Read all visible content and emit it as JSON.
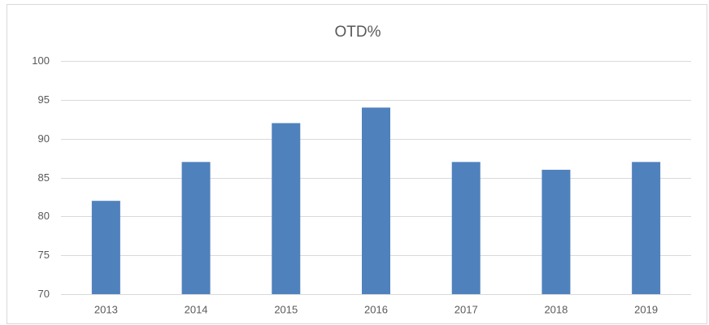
{
  "chart_data": {
    "type": "bar",
    "title": "OTD%",
    "categories": [
      "2013",
      "2014",
      "2015",
      "2016",
      "2017",
      "2018",
      "2019"
    ],
    "values": [
      82,
      87,
      92,
      94,
      87,
      86,
      87
    ],
    "color": "#4f81bd",
    "ylim": [
      70,
      100
    ],
    "yticks": [
      70,
      75,
      80,
      85,
      90,
      95,
      100
    ],
    "grid": true
  }
}
